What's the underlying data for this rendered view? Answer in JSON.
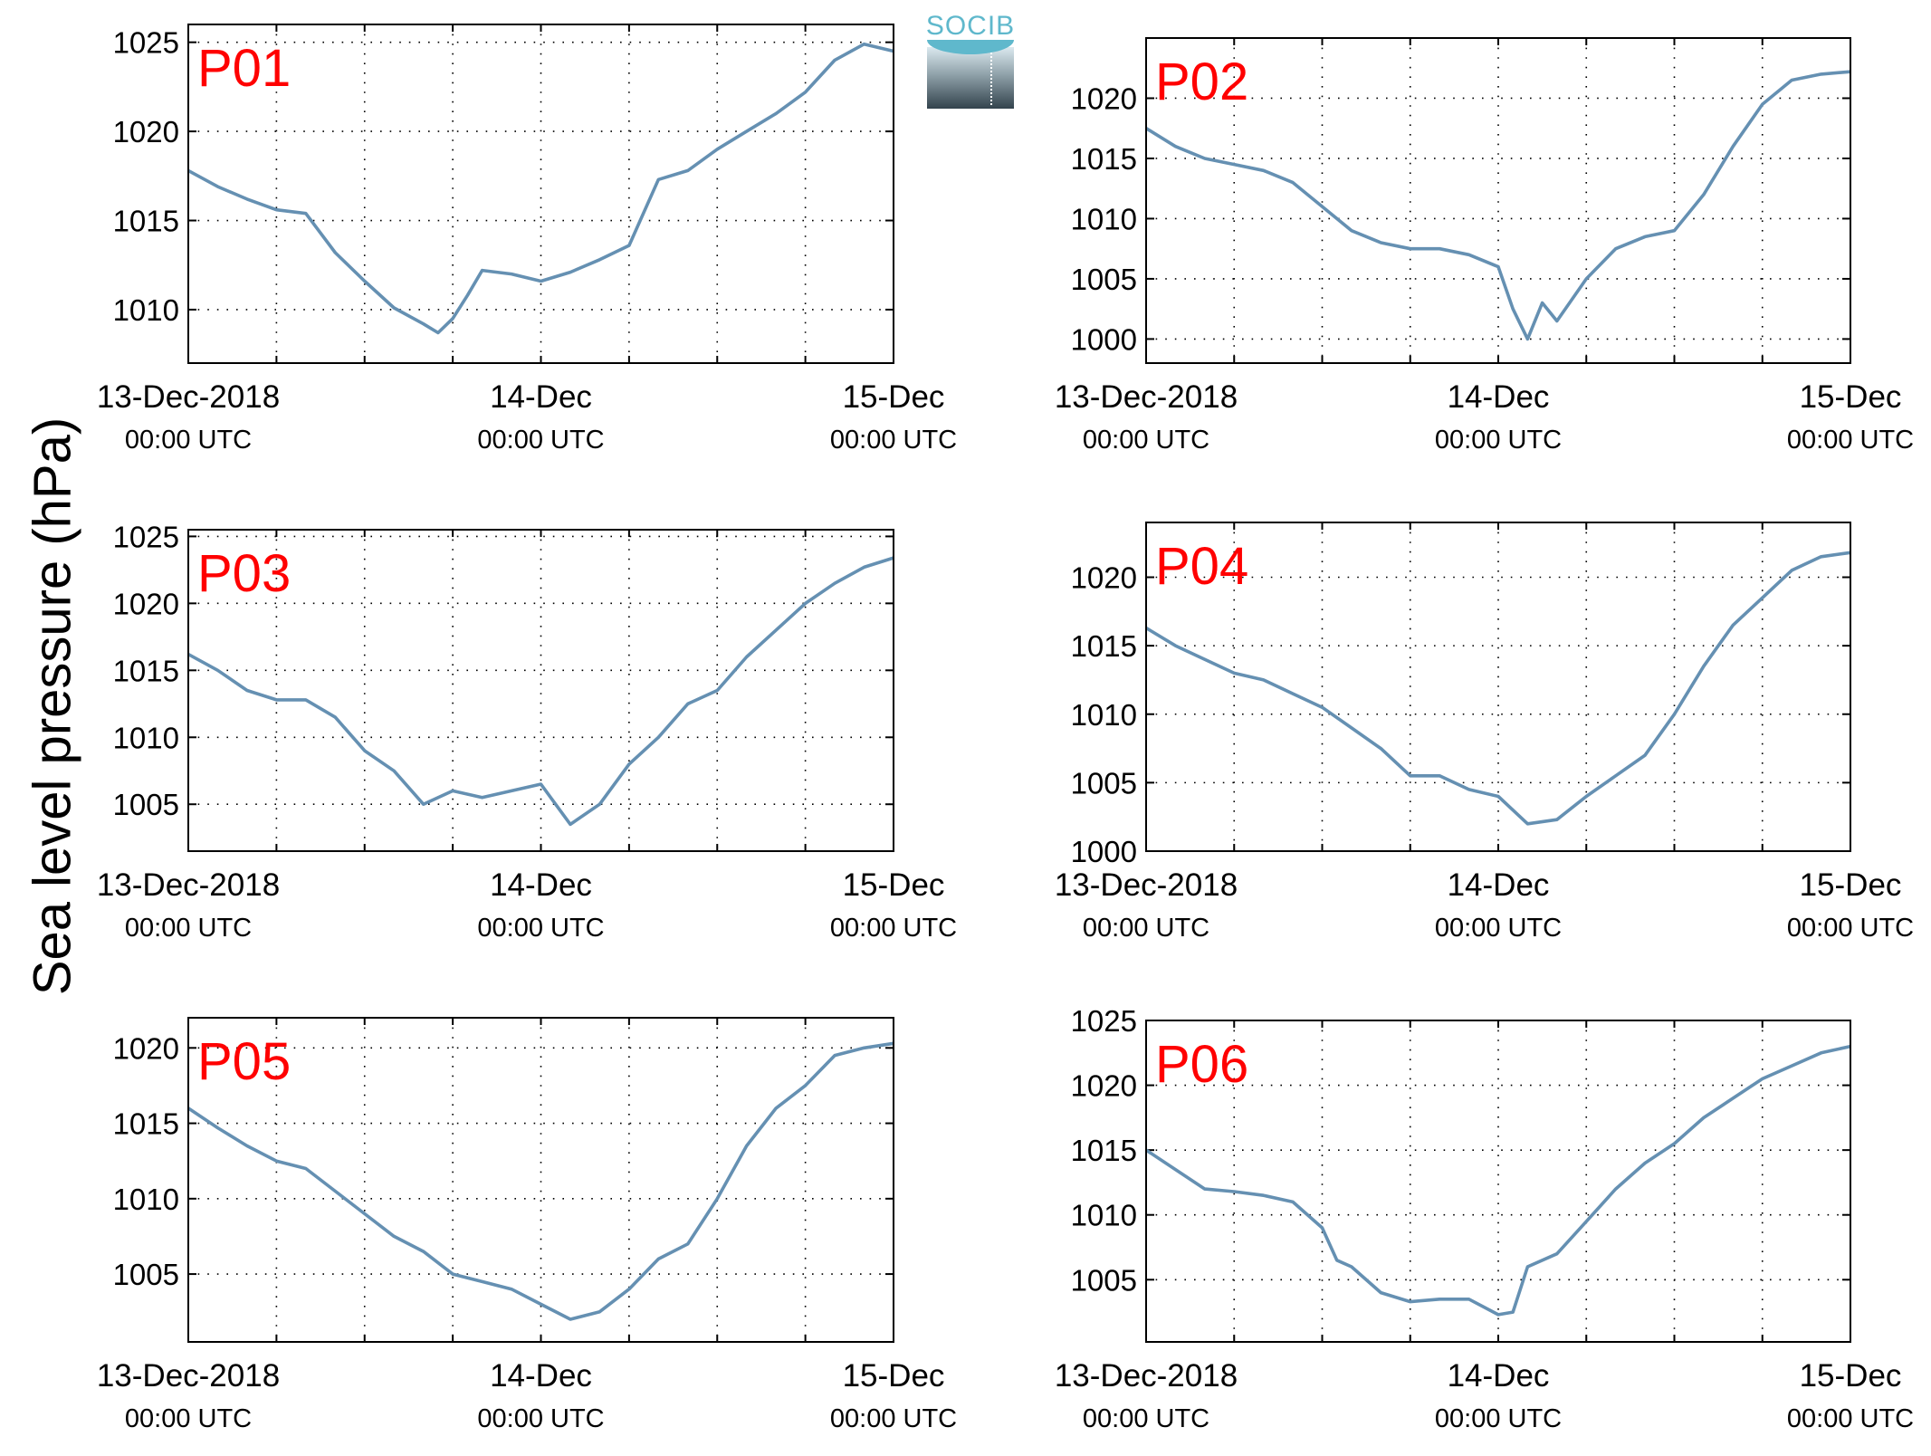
{
  "figure": {
    "ylabel": "Sea level pressure (hPa)",
    "logo_text": "SOCIB",
    "series_color": "#6590b2",
    "panel_label_color": "#ff0000"
  },
  "chart_data": [
    {
      "type": "line",
      "panel": "P01",
      "ylim": [
        1007,
        1026
      ],
      "yticks": [
        1010,
        1015,
        1020,
        1025
      ],
      "xlim": [
        "2018-12-13 00:00",
        "2018-12-15 00:00"
      ],
      "x_ticks": [
        {
          "line1": "13-Dec-2018",
          "line2": "00:00 UTC"
        },
        {
          "line1": "14-Dec",
          "line2": "00:00 UTC"
        },
        {
          "line1": "15-Dec",
          "line2": "00:00 UTC"
        }
      ],
      "grid": true,
      "x": [
        "2018-12-13 00:00",
        "2018-12-13 02:00",
        "2018-12-13 04:00",
        "2018-12-13 06:00",
        "2018-12-13 08:00",
        "2018-12-13 10:00",
        "2018-12-13 12:00",
        "2018-12-13 14:00",
        "2018-12-13 16:00",
        "2018-12-13 17:00",
        "2018-12-13 18:00",
        "2018-12-13 19:00",
        "2018-12-13 20:00",
        "2018-12-13 22:00",
        "2018-12-14 00:00",
        "2018-12-14 02:00",
        "2018-12-14 04:00",
        "2018-12-14 06:00",
        "2018-12-14 08:00",
        "2018-12-14 10:00",
        "2018-12-14 12:00",
        "2018-12-14 14:00",
        "2018-12-14 16:00",
        "2018-12-14 18:00",
        "2018-12-14 20:00",
        "2018-12-14 22:00",
        "2018-12-15 00:00"
      ],
      "y": [
        1017.8,
        1016.9,
        1016.2,
        1015.6,
        1015.4,
        1013.2,
        1011.6,
        1010.1,
        1009.2,
        1008.7,
        1009.5,
        1010.8,
        1012.2,
        1012.0,
        1011.6,
        1012.1,
        1012.8,
        1013.6,
        1017.3,
        1017.8,
        1019.0,
        1020.0,
        1021.0,
        1022.2,
        1024.0,
        1024.9,
        1024.5
      ]
    },
    {
      "type": "line",
      "panel": "P02",
      "ylim": [
        998,
        1025
      ],
      "yticks": [
        1000,
        1005,
        1010,
        1015,
        1020
      ],
      "xlim": [
        "2018-12-13 00:00",
        "2018-12-15 00:00"
      ],
      "x_ticks": [
        {
          "line1": "13-Dec-2018",
          "line2": "00:00 UTC"
        },
        {
          "line1": "14-Dec",
          "line2": "00:00 UTC"
        },
        {
          "line1": "15-Dec",
          "line2": "00:00 UTC"
        }
      ],
      "grid": true,
      "x": [
        "2018-12-13 00:00",
        "2018-12-13 02:00",
        "2018-12-13 04:00",
        "2018-12-13 06:00",
        "2018-12-13 08:00",
        "2018-12-13 10:00",
        "2018-12-13 12:00",
        "2018-12-13 14:00",
        "2018-12-13 16:00",
        "2018-12-13 18:00",
        "2018-12-13 20:00",
        "2018-12-13 22:00",
        "2018-12-14 00:00",
        "2018-12-14 01:00",
        "2018-12-14 02:00",
        "2018-12-14 03:00",
        "2018-12-14 04:00",
        "2018-12-14 06:00",
        "2018-12-14 08:00",
        "2018-12-14 10:00",
        "2018-12-14 12:00",
        "2018-12-14 14:00",
        "2018-12-14 16:00",
        "2018-12-14 18:00",
        "2018-12-14 20:00",
        "2018-12-14 22:00",
        "2018-12-15 00:00"
      ],
      "y": [
        1017.5,
        1016.0,
        1015.0,
        1014.5,
        1014.0,
        1013.0,
        1011.0,
        1009.0,
        1008.0,
        1007.5,
        1007.5,
        1007.0,
        1006.0,
        1002.5,
        1000.0,
        1003.0,
        1001.5,
        1005.0,
        1007.5,
        1008.5,
        1009.0,
        1012.0,
        1016.0,
        1019.5,
        1021.5,
        1022.0,
        1022.2
      ]
    },
    {
      "type": "line",
      "panel": "P03",
      "ylim": [
        1001.5,
        1025.5
      ],
      "yticks": [
        1005,
        1010,
        1015,
        1020,
        1025
      ],
      "xlim": [
        "2018-12-13 00:00",
        "2018-12-15 00:00"
      ],
      "x_ticks": [
        {
          "line1": "13-Dec-2018",
          "line2": "00:00 UTC"
        },
        {
          "line1": "14-Dec",
          "line2": "00:00 UTC"
        },
        {
          "line1": "15-Dec",
          "line2": "00:00 UTC"
        }
      ],
      "grid": true,
      "x": [
        "2018-12-13 00:00",
        "2018-12-13 02:00",
        "2018-12-13 04:00",
        "2018-12-13 06:00",
        "2018-12-13 08:00",
        "2018-12-13 10:00",
        "2018-12-13 12:00",
        "2018-12-13 14:00",
        "2018-12-13 16:00",
        "2018-12-13 18:00",
        "2018-12-13 20:00",
        "2018-12-13 22:00",
        "2018-12-14 00:00",
        "2018-12-14 01:00",
        "2018-12-14 02:00",
        "2018-12-14 04:00",
        "2018-12-14 06:00",
        "2018-12-14 08:00",
        "2018-12-14 10:00",
        "2018-12-14 12:00",
        "2018-12-14 14:00",
        "2018-12-14 16:00",
        "2018-12-14 18:00",
        "2018-12-14 20:00",
        "2018-12-14 22:00",
        "2018-12-15 00:00"
      ],
      "y": [
        1016.2,
        1015.0,
        1013.5,
        1012.8,
        1012.8,
        1011.5,
        1009.0,
        1007.5,
        1005.0,
        1006.0,
        1005.5,
        1006.0,
        1006.5,
        1005.0,
        1003.5,
        1005.0,
        1008.0,
        1010.0,
        1012.5,
        1013.5,
        1016.0,
        1018.0,
        1020.0,
        1021.5,
        1022.7,
        1023.4
      ]
    },
    {
      "type": "line",
      "panel": "P04",
      "ylim": [
        1000,
        1024
      ],
      "yticks": [
        1000,
        1005,
        1010,
        1015,
        1020
      ],
      "xlim": [
        "2018-12-13 00:00",
        "2018-12-15 00:00"
      ],
      "x_ticks": [
        {
          "line1": "13-Dec-2018",
          "line2": "00:00 UTC"
        },
        {
          "line1": "14-Dec",
          "line2": "00:00 UTC"
        },
        {
          "line1": "15-Dec",
          "line2": "00:00 UTC"
        }
      ],
      "grid": true,
      "x": [
        "2018-12-13 00:00",
        "2018-12-13 02:00",
        "2018-12-13 04:00",
        "2018-12-13 06:00",
        "2018-12-13 08:00",
        "2018-12-13 10:00",
        "2018-12-13 12:00",
        "2018-12-13 14:00",
        "2018-12-13 16:00",
        "2018-12-13 18:00",
        "2018-12-13 20:00",
        "2018-12-13 22:00",
        "2018-12-14 00:00",
        "2018-12-14 02:00",
        "2018-12-14 04:00",
        "2018-12-14 06:00",
        "2018-12-14 08:00",
        "2018-12-14 10:00",
        "2018-12-14 12:00",
        "2018-12-14 14:00",
        "2018-12-14 16:00",
        "2018-12-14 18:00",
        "2018-12-14 20:00",
        "2018-12-14 22:00",
        "2018-12-15 00:00"
      ],
      "y": [
        1016.3,
        1015.0,
        1014.0,
        1013.0,
        1012.5,
        1011.5,
        1010.5,
        1009.0,
        1007.5,
        1005.5,
        1005.5,
        1004.5,
        1004.0,
        1002.0,
        1002.3,
        1004.0,
        1005.5,
        1007.0,
        1010.0,
        1013.5,
        1016.5,
        1018.5,
        1020.5,
        1021.5,
        1021.8
      ]
    },
    {
      "type": "line",
      "panel": "P05",
      "ylim": [
        1000.5,
        1022
      ],
      "yticks": [
        1005,
        1010,
        1015,
        1020
      ],
      "xlim": [
        "2018-12-13 00:00",
        "2018-12-15 00:00"
      ],
      "x_ticks": [
        {
          "line1": "13-Dec-2018",
          "line2": "00:00 UTC"
        },
        {
          "line1": "14-Dec",
          "line2": "00:00 UTC"
        },
        {
          "line1": "15-Dec",
          "line2": "00:00 UTC"
        }
      ],
      "grid": true,
      "x": [
        "2018-12-13 00:00",
        "2018-12-13 02:00",
        "2018-12-13 04:00",
        "2018-12-13 06:00",
        "2018-12-13 08:00",
        "2018-12-13 10:00",
        "2018-12-13 12:00",
        "2018-12-13 14:00",
        "2018-12-13 16:00",
        "2018-12-13 18:00",
        "2018-12-13 20:00",
        "2018-12-13 22:00",
        "2018-12-14 00:00",
        "2018-12-14 02:00",
        "2018-12-14 04:00",
        "2018-12-14 06:00",
        "2018-12-14 08:00",
        "2018-12-14 10:00",
        "2018-12-14 12:00",
        "2018-12-14 14:00",
        "2018-12-14 16:00",
        "2018-12-14 18:00",
        "2018-12-14 20:00",
        "2018-12-14 22:00",
        "2018-12-15 00:00"
      ],
      "y": [
        1016.0,
        1014.7,
        1013.5,
        1012.5,
        1012.0,
        1010.5,
        1009.0,
        1007.5,
        1006.5,
        1005.0,
        1004.5,
        1004.0,
        1003.0,
        1002.0,
        1002.5,
        1004.0,
        1006.0,
        1007.0,
        1010.0,
        1013.5,
        1016.0,
        1017.5,
        1019.5,
        1020.0,
        1020.3
      ]
    },
    {
      "type": "line",
      "panel": "P06",
      "ylim": [
        1000.2,
        1025
      ],
      "yticks": [
        1005,
        1010,
        1015,
        1020,
        1025
      ],
      "xlim": [
        "2018-12-13 00:00",
        "2018-12-15 00:00"
      ],
      "x_ticks": [
        {
          "line1": "13-Dec-2018",
          "line2": "00:00 UTC"
        },
        {
          "line1": "14-Dec",
          "line2": "00:00 UTC"
        },
        {
          "line1": "15-Dec",
          "line2": "00:00 UTC"
        }
      ],
      "grid": true,
      "x": [
        "2018-12-13 00:00",
        "2018-12-13 02:00",
        "2018-12-13 04:00",
        "2018-12-13 06:00",
        "2018-12-13 08:00",
        "2018-12-13 10:00",
        "2018-12-13 12:00",
        "2018-12-13 13:00",
        "2018-12-13 14:00",
        "2018-12-13 16:00",
        "2018-12-13 18:00",
        "2018-12-13 20:00",
        "2018-12-13 22:00",
        "2018-12-14 00:00",
        "2018-12-14 01:00",
        "2018-12-14 02:00",
        "2018-12-14 04:00",
        "2018-12-14 06:00",
        "2018-12-14 08:00",
        "2018-12-14 10:00",
        "2018-12-14 12:00",
        "2018-12-14 14:00",
        "2018-12-14 16:00",
        "2018-12-14 18:00",
        "2018-12-14 20:00",
        "2018-12-14 22:00",
        "2018-12-15 00:00"
      ],
      "y": [
        1015.0,
        1013.5,
        1012.0,
        1011.8,
        1011.5,
        1011.0,
        1009.0,
        1006.5,
        1006.0,
        1004.0,
        1003.3,
        1003.5,
        1003.5,
        1002.3,
        1002.5,
        1006.0,
        1007.0,
        1009.5,
        1012.0,
        1014.0,
        1015.5,
        1017.5,
        1019.0,
        1020.5,
        1021.5,
        1022.5,
        1023.0
      ]
    }
  ]
}
